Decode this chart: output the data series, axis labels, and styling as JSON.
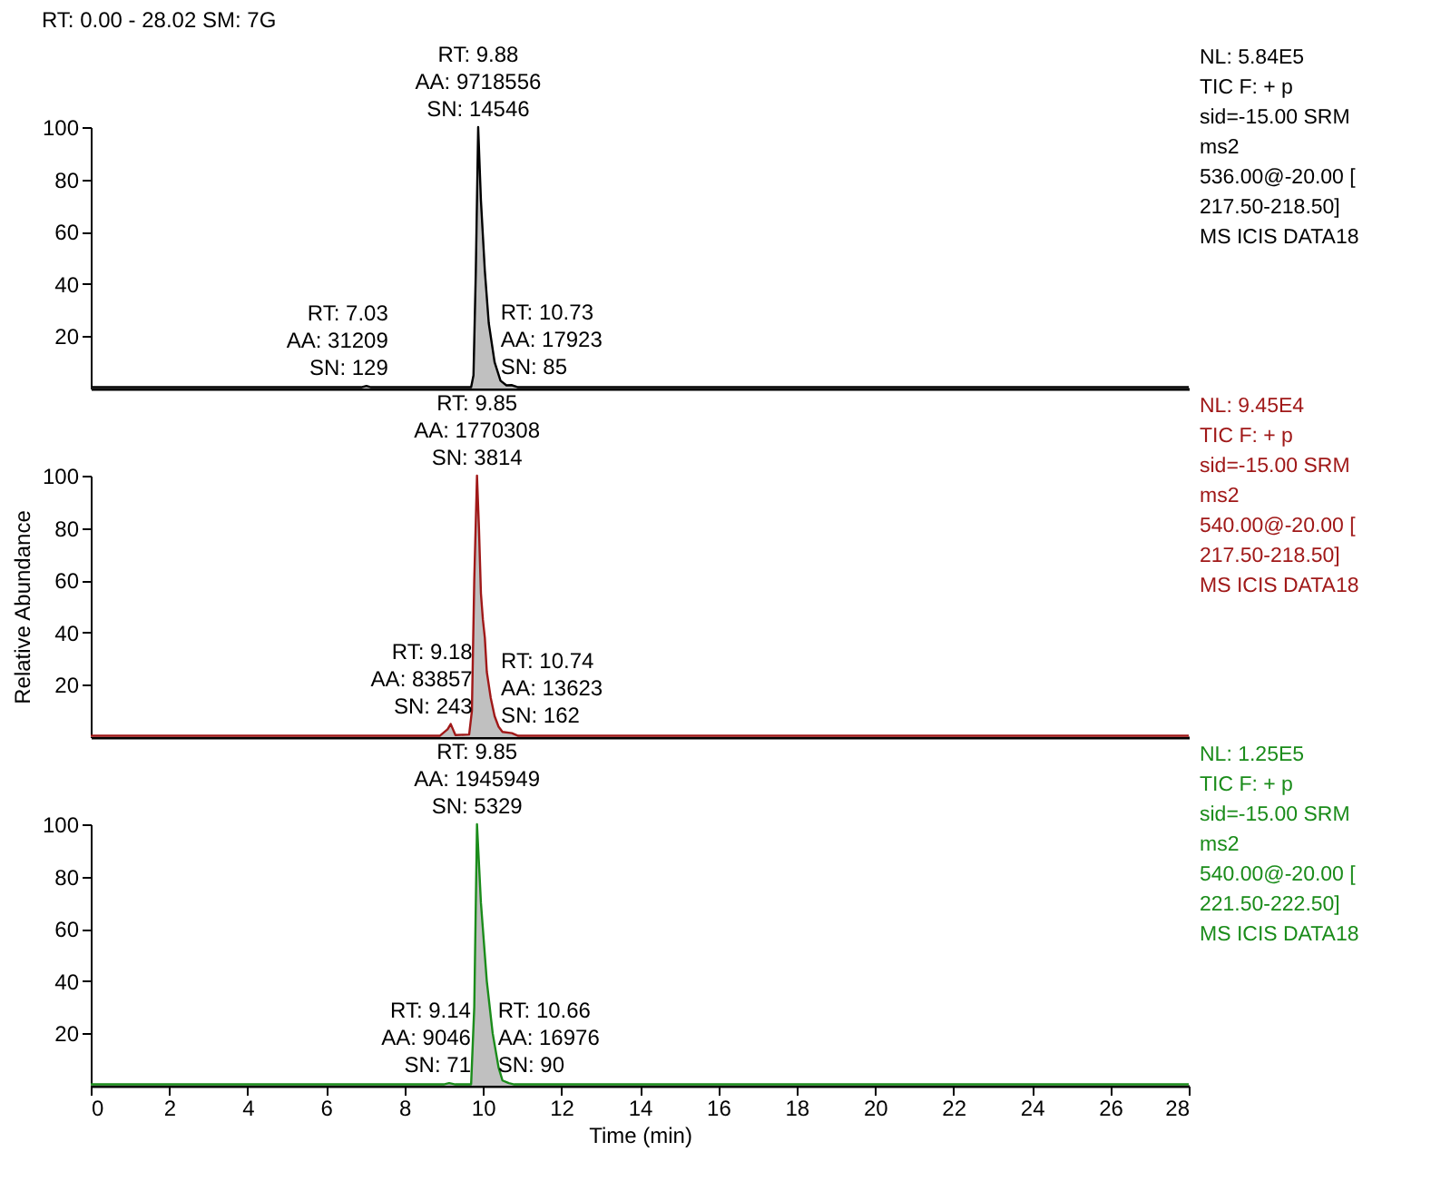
{
  "chart_data": [
    {
      "type": "area",
      "title": "RT: 0.00 - 28.02   SM: 7G",
      "xlim": [
        0,
        28
      ],
      "xticks": [
        0,
        2,
        4,
        6,
        8,
        10,
        12,
        14,
        16,
        18,
        20,
        22,
        24,
        26,
        28
      ],
      "ylim": [
        0,
        100
      ],
      "yticks": [
        20,
        40,
        60,
        80,
        100
      ],
      "tick_labels": "y",
      "series": [
        {
          "color": "#000000",
          "x": [
            0,
            6.9,
            7.03,
            7.15,
            9.7,
            9.76,
            9.82,
            9.88,
            9.95,
            10.05,
            10.15,
            10.3,
            10.45,
            10.6,
            10.73,
            10.9,
            28
          ],
          "values": [
            0.5,
            0.5,
            1,
            0.5,
            0.5,
            5,
            45,
            100,
            72,
            45,
            25,
            10,
            3,
            1.2,
            1.3,
            0.5,
            0.5
          ]
        }
      ],
      "annotations": [
        {
          "text": "RT: 9.88\nAA: 9718556\nSN: 14546",
          "x": 9.88,
          "y": 100
        },
        {
          "text": "RT: 7.03\nAA: 31209\nSN: 129",
          "x": 7.03,
          "y": 1
        },
        {
          "text": "RT: 10.73\nAA: 17923\nSN: 85",
          "x": 10.73,
          "y": 1.3
        },
        "NL: 5.84E5",
        "TIC F: + p",
        "sid=-15.00  SRM",
        "ms2",
        "536.00@-20.00 [",
        "217.50-218.50]",
        "MS  ICIS DATA18"
      ]
    },
    {
      "type": "area",
      "ylabel": "Relative Abundance",
      "xlim": [
        0,
        28
      ],
      "xticks": [
        0,
        2,
        4,
        6,
        8,
        10,
        12,
        14,
        16,
        18,
        20,
        22,
        24,
        26,
        28
      ],
      "ylim": [
        0,
        100
      ],
      "yticks": [
        20,
        40,
        60,
        80,
        100
      ],
      "tick_labels": "y",
      "series": [
        {
          "color": "#a01818",
          "x": [
            0,
            8.9,
            9.1,
            9.18,
            9.3,
            9.65,
            9.72,
            9.78,
            9.85,
            9.9,
            9.95,
            10.0,
            10.05,
            10.1,
            10.2,
            10.3,
            10.4,
            10.5,
            10.74,
            10.9,
            28
          ],
          "values": [
            0.5,
            0.5,
            3,
            5,
            0.8,
            1,
            10,
            60,
            100,
            80,
            55,
            45,
            38,
            25,
            15,
            8,
            4,
            2,
            1.5,
            0.5,
            0.5
          ]
        }
      ],
      "annotations": [
        {
          "text": "RT: 9.85\nAA: 1770308\nSN: 3814",
          "x": 9.85,
          "y": 100
        },
        {
          "text": "RT: 9.18\nAA: 83857\nSN: 243",
          "x": 9.18,
          "y": 5
        },
        {
          "text": "RT: 10.74\nAA: 13623\nSN: 162",
          "x": 10.74,
          "y": 1.5
        },
        "NL: 9.45E4",
        "TIC F: + p",
        "sid=-15.00  SRM",
        "ms2",
        "540.00@-20.00 [",
        "217.50-218.50]",
        "MS  ICIS DATA18"
      ]
    },
    {
      "type": "area",
      "xlabel": "Time (min)",
      "xlim": [
        0,
        28
      ],
      "xticks": [
        0,
        2,
        4,
        6,
        8,
        10,
        12,
        14,
        16,
        18,
        20,
        22,
        24,
        26,
        28
      ],
      "ylim": [
        0,
        100
      ],
      "yticks": [
        20,
        40,
        60,
        80,
        100
      ],
      "series": [
        {
          "color": "#1a8c1a",
          "x": [
            0,
            9.0,
            9.14,
            9.3,
            9.7,
            9.78,
            9.85,
            9.95,
            10.1,
            10.25,
            10.4,
            10.5,
            10.66,
            10.8,
            28
          ],
          "values": [
            0.5,
            0.5,
            1,
            0.5,
            0.5,
            30,
            100,
            70,
            40,
            20,
            7,
            2,
            1,
            0.5,
            0.5
          ]
        }
      ],
      "annotations": [
        {
          "text": "RT: 9.85\nAA: 1945949\nSN: 5329",
          "x": 9.85,
          "y": 100
        },
        {
          "text": "RT: 9.14\nAA: 9046\nSN: 71",
          "x": 9.14,
          "y": 1
        },
        {
          "text": "RT: 10.66\nAA: 16976\nSN: 90",
          "x": 10.66,
          "y": 1
        },
        "NL: 1.25E5",
        "TIC F: + p",
        "sid=-15.00  SRM",
        "ms2",
        "540.00@-20.00 [",
        "221.50-222.50]",
        "MS  ICIS DATA18"
      ]
    }
  ]
}
